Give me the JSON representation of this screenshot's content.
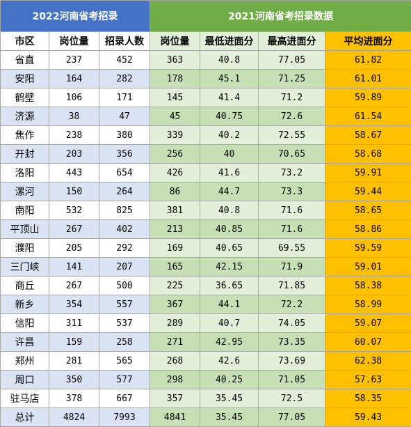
{
  "header": {
    "left_title": "2022河南省考招录",
    "right_title": "2021河南省考招录数据"
  },
  "columns": {
    "left": [
      "市区",
      "岗位量",
      "招录人数"
    ],
    "right": [
      "岗位量",
      "最低进面分",
      "最高进面分",
      "平均进面分"
    ]
  },
  "rows": [
    {
      "city": "省直",
      "posts22": "237",
      "hires22": "452",
      "posts21": "363",
      "min21": "40.8",
      "max21": "77.05",
      "avg21": "61.82"
    },
    {
      "city": "安阳",
      "posts22": "164",
      "hires22": "282",
      "posts21": "178",
      "min21": "45.1",
      "max21": "71.25",
      "avg21": "61.01"
    },
    {
      "city": "鹤壁",
      "posts22": "106",
      "hires22": "171",
      "posts21": "145",
      "min21": "41.4",
      "max21": "71.2",
      "avg21": "59.89"
    },
    {
      "city": "济源",
      "posts22": "38",
      "hires22": "47",
      "posts21": "45",
      "min21": "40.75",
      "max21": "72.6",
      "avg21": "61.54"
    },
    {
      "city": "焦作",
      "posts22": "238",
      "hires22": "380",
      "posts21": "339",
      "min21": "40.2",
      "max21": "72.55",
      "avg21": "58.67"
    },
    {
      "city": "开封",
      "posts22": "203",
      "hires22": "356",
      "posts21": "256",
      "min21": "40",
      "max21": "70.65",
      "avg21": "58.68"
    },
    {
      "city": "洛阳",
      "posts22": "443",
      "hires22": "654",
      "posts21": "426",
      "min21": "41.6",
      "max21": "73.2",
      "avg21": "59.91"
    },
    {
      "city": "漯河",
      "posts22": "150",
      "hires22": "264",
      "posts21": "86",
      "min21": "44.7",
      "max21": "73.3",
      "avg21": "59.44"
    },
    {
      "city": "南阳",
      "posts22": "532",
      "hires22": "825",
      "posts21": "381",
      "min21": "40.8",
      "max21": "71.6",
      "avg21": "58.65"
    },
    {
      "city": "平顶山",
      "posts22": "267",
      "hires22": "402",
      "posts21": "213",
      "min21": "40.85",
      "max21": "71.6",
      "avg21": "58.86"
    },
    {
      "city": "濮阳",
      "posts22": "205",
      "hires22": "292",
      "posts21": "169",
      "min21": "40.65",
      "max21": "69.55",
      "avg21": "59.59"
    },
    {
      "city": "三门峡",
      "posts22": "141",
      "hires22": "207",
      "posts21": "165",
      "min21": "42.15",
      "max21": "71.9",
      "avg21": "59.01"
    },
    {
      "city": "商丘",
      "posts22": "267",
      "hires22": "500",
      "posts21": "225",
      "min21": "36.65",
      "max21": "71.85",
      "avg21": "58.38"
    },
    {
      "city": "新乡",
      "posts22": "354",
      "hires22": "557",
      "posts21": "367",
      "min21": "44.1",
      "max21": "72.2",
      "avg21": "58.99"
    },
    {
      "city": "信阳",
      "posts22": "311",
      "hires22": "537",
      "posts21": "289",
      "min21": "40.7",
      "max21": "74.05",
      "avg21": "59.07"
    },
    {
      "city": "许昌",
      "posts22": "159",
      "hires22": "258",
      "posts21": "271",
      "min21": "42.95",
      "max21": "73.35",
      "avg21": "60.07"
    },
    {
      "city": "郑州",
      "posts22": "281",
      "hires22": "565",
      "posts21": "268",
      "min21": "42.6",
      "max21": "73.69",
      "avg21": "62.38"
    },
    {
      "city": "周口",
      "posts22": "350",
      "hires22": "577",
      "posts21": "298",
      "min21": "40.25",
      "max21": "71.05",
      "avg21": "57.63"
    },
    {
      "city": "驻马店",
      "posts22": "378",
      "hires22": "667",
      "posts21": "357",
      "min21": "35.45",
      "max21": "72.5",
      "avg21": "58.35"
    },
    {
      "city": "总计",
      "posts22": "4824",
      "hires22": "7993",
      "posts21": "4841",
      "min21": "35.45",
      "max21": "77.05",
      "avg21": "59.43"
    }
  ],
  "colors": {
    "left_header": "#4472c4",
    "right_header": "#70ad47",
    "avg_column": "#ffc000"
  }
}
